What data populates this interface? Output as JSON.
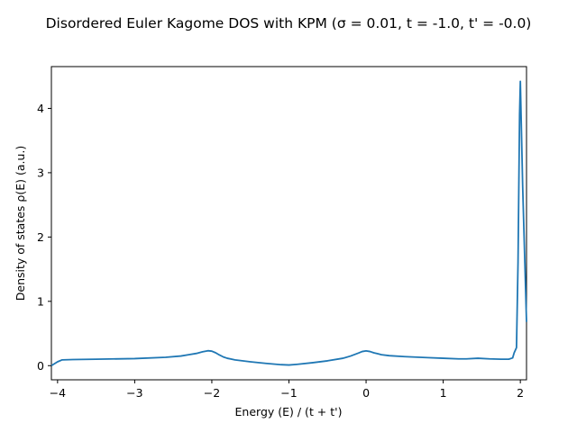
{
  "chart_data": {
    "type": "line",
    "title": "Disordered Euler Kagome DOS with KPM (σ = 0.01, t = -1.0, t' = -0.0)",
    "xlabel": "Energy (E) / (t + t')",
    "ylabel": "Density of states ρ(E) (a.u.)",
    "xlim": [
      -4.08,
      2.08
    ],
    "ylim": [
      -0.22,
      4.65
    ],
    "xticks": [
      -4,
      -3,
      -2,
      -1,
      0,
      1,
      2
    ],
    "yticks": [
      0,
      1,
      2,
      3,
      4
    ],
    "xtick_labels": [
      "−4",
      "−3",
      "−2",
      "−1",
      "0",
      "1",
      "2"
    ],
    "ytick_labels": [
      "0",
      "1",
      "2",
      "3",
      "4"
    ],
    "grid": false,
    "legend": "none",
    "series": [
      {
        "color": "#1f77b4",
        "x": [
          -4.08,
          -4.0,
          -3.94,
          -3.8,
          -3.5,
          -3.0,
          -2.6,
          -2.4,
          -2.3,
          -2.2,
          -2.12,
          -2.05,
          -2.0,
          -1.95,
          -1.9,
          -1.85,
          -1.8,
          -1.7,
          -1.5,
          -1.3,
          -1.1,
          -1.0,
          -0.9,
          -0.7,
          -0.5,
          -0.3,
          -0.2,
          -0.1,
          -0.05,
          0.0,
          0.05,
          0.1,
          0.15,
          0.2,
          0.3,
          0.5,
          0.8,
          1.0,
          1.2,
          1.3,
          1.45,
          1.6,
          1.75,
          1.85,
          1.9,
          1.92,
          1.95,
          1.97,
          1.99,
          2.0,
          2.03,
          2.08
        ],
        "y": [
          0.0,
          0.06,
          0.09,
          0.095,
          0.1,
          0.11,
          0.13,
          0.15,
          0.17,
          0.19,
          0.215,
          0.232,
          0.225,
          0.2,
          0.165,
          0.135,
          0.115,
          0.09,
          0.06,
          0.035,
          0.015,
          0.01,
          0.02,
          0.045,
          0.075,
          0.115,
          0.15,
          0.195,
          0.22,
          0.23,
          0.22,
          0.2,
          0.185,
          0.17,
          0.155,
          0.14,
          0.125,
          0.115,
          0.105,
          0.105,
          0.115,
          0.105,
          0.1,
          0.1,
          0.12,
          0.2,
          0.28,
          1.6,
          3.9,
          4.42,
          2.8,
          0.68
        ]
      }
    ]
  }
}
